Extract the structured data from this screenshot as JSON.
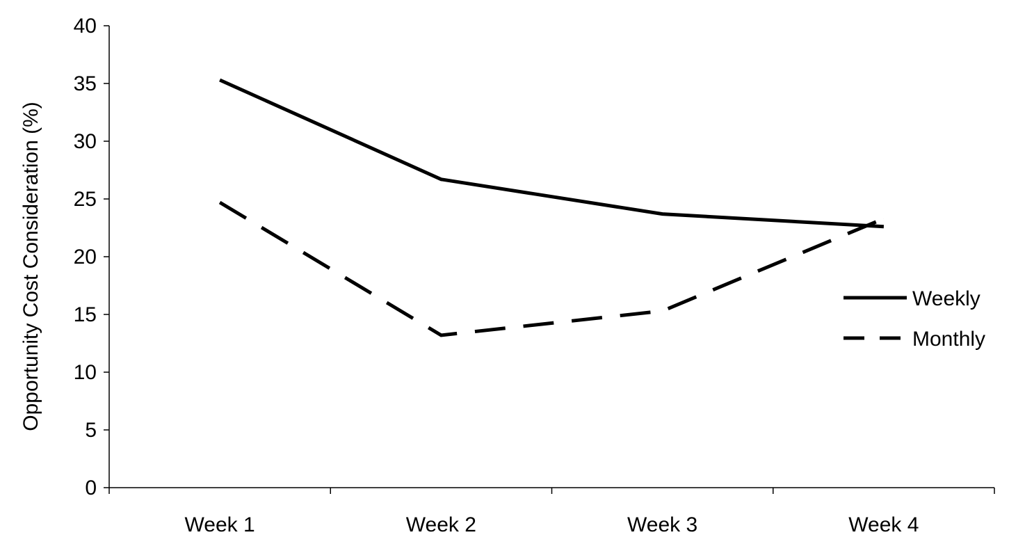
{
  "chart_data": {
    "type": "line",
    "categories": [
      "Week 1",
      "Week 2",
      "Week 3",
      "Week 4"
    ],
    "series": [
      {
        "name": "Weekly",
        "values": [
          35.3,
          26.7,
          23.7,
          22.6
        ],
        "style": "solid",
        "color": "#000000"
      },
      {
        "name": "Monthly",
        "values": [
          24.7,
          13.2,
          15.3,
          23.3
        ],
        "style": "dashed",
        "color": "#000000"
      }
    ],
    "ylabel": "Opportunity Cost Consideration (%)",
    "xlabel": "",
    "ylim": [
      0,
      40
    ],
    "yticks": [
      0,
      5,
      10,
      15,
      20,
      25,
      30,
      35,
      40
    ],
    "grid": false,
    "legend_position": "right"
  }
}
